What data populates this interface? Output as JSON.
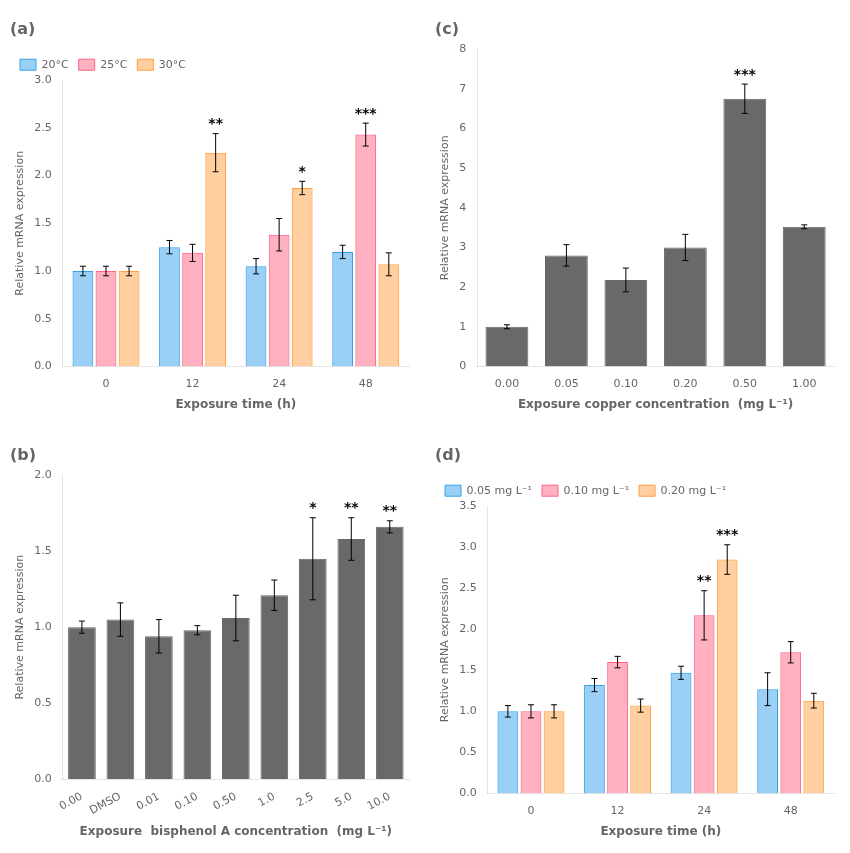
{
  "chart_data": [
    {
      "type": "bar",
      "title": "(a)",
      "xlabel": "Exposure time (h)",
      "ylabel": "Relative mRNA expression",
      "categories": [
        "0",
        "12",
        "24",
        "48"
      ],
      "series": [
        {
          "name": "20°C",
          "values": [
            1.0,
            1.25,
            1.05,
            1.2
          ],
          "errors": [
            0.05,
            0.07,
            0.08,
            0.07
          ]
        },
        {
          "name": "25°C",
          "values": [
            1.0,
            1.19,
            1.38,
            2.43
          ],
          "errors": [
            0.05,
            0.09,
            0.17,
            0.12
          ]
        },
        {
          "name": "30°C",
          "values": [
            1.0,
            2.24,
            1.87,
            1.07
          ],
          "errors": [
            0.05,
            0.2,
            0.07,
            0.12
          ]
        }
      ],
      "annotations": [
        {
          "text": "**",
          "category": "12",
          "series": "30°C"
        },
        {
          "text": "*",
          "category": "24",
          "series": "30°C"
        },
        {
          "text": "***",
          "category": "48",
          "series": "25°C"
        }
      ],
      "ylim": [
        0,
        3.0
      ],
      "yticks": [
        {
          "value": 0,
          "label": "0.0"
        },
        0.5,
        {
          "value": 1,
          "label": "1.0"
        },
        1.5,
        {
          "value": 2,
          "label": "2.0"
        },
        2.5,
        {
          "value": 3,
          "label": "3.0"
        }
      ],
      "grid": false,
      "legend": "upper left"
    },
    {
      "type": "bar",
      "title": "(c)",
      "xlabel": "Exposure copper concentration  (mg L⁻¹)",
      "ylabel": "Relative mRNA expression",
      "categories": [
        "0.00",
        "0.05",
        "0.10",
        "0.20",
        "0.50",
        "1.00"
      ],
      "values": [
        1.0,
        2.8,
        2.18,
        3.0,
        6.75,
        3.52
      ],
      "errors": [
        0.05,
        0.27,
        0.3,
        0.33,
        0.37,
        0.05
      ],
      "color": "#696969",
      "annotations": [
        {
          "text": "***",
          "category": "0.50"
        }
      ],
      "ylim": [
        0,
        8.0
      ],
      "yticks": [
        0,
        1,
        2,
        3,
        4,
        5,
        6,
        7,
        8
      ],
      "grid": false
    },
    {
      "type": "bar",
      "title": "(b)",
      "xlabel": "Exposure  bisphenol A concentration  (mg L⁻¹)",
      "ylabel": "Relative mRNA expression",
      "categories": [
        "0.00",
        "DMSO",
        "0.01",
        "0.10",
        "0.50",
        "1.0",
        "2.5",
        "5.0",
        "10.0"
      ],
      "values": [
        1.0,
        1.05,
        0.94,
        0.98,
        1.06,
        1.21,
        1.45,
        1.58,
        1.66
      ],
      "errors": [
        0.04,
        0.11,
        0.11,
        0.03,
        0.15,
        0.1,
        0.27,
        0.14,
        0.04
      ],
      "color": "#696969",
      "annotations": [
        {
          "text": "*",
          "category": "2.5"
        },
        {
          "text": "**",
          "category": "5.0"
        },
        {
          "text": "**",
          "category": "10.0"
        }
      ],
      "ylim": [
        0,
        2.0
      ],
      "yticks": [
        {
          "value": 0,
          "label": "0.0"
        },
        0.5,
        {
          "value": 1,
          "label": "1.0"
        },
        1.5,
        {
          "value": 2,
          "label": "2.0"
        }
      ],
      "grid": false
    },
    {
      "type": "bar",
      "title": "(d)",
      "xlabel": "Exposure time (h)",
      "ylabel": "Relative mRNA expression",
      "categories": [
        "0",
        "12",
        "24",
        "48"
      ],
      "series": [
        {
          "name": "0.05 mg L⁻¹",
          "values": [
            1.0,
            1.32,
            1.47,
            1.27
          ],
          "errors": [
            0.07,
            0.08,
            0.08,
            0.2
          ]
        },
        {
          "name": "0.10 mg L⁻¹",
          "values": [
            1.0,
            1.6,
            2.17,
            1.72
          ],
          "errors": [
            0.08,
            0.07,
            0.3,
            0.13
          ]
        },
        {
          "name": "0.20 mg L⁻¹",
          "values": [
            1.0,
            1.07,
            2.85,
            1.13
          ],
          "errors": [
            0.08,
            0.08,
            0.18,
            0.09
          ]
        }
      ],
      "annotations": [
        {
          "text": "**",
          "category": "24",
          "series": "0.10 mg L⁻¹"
        },
        {
          "text": "***",
          "category": "24",
          "series": "0.20 mg L⁻¹"
        }
      ],
      "ylim": [
        0.0,
        3.5
      ],
      "yticks": [
        {
          "value": 0,
          "label": "0.0"
        },
        0.5,
        {
          "value": 1,
          "label": "1.0"
        },
        1.5,
        {
          "value": 2,
          "label": "2.0"
        },
        2.5,
        {
          "value": 3,
          "label": "3.0"
        },
        3.5
      ],
      "grid": false,
      "legend": "upper left"
    }
  ]
}
